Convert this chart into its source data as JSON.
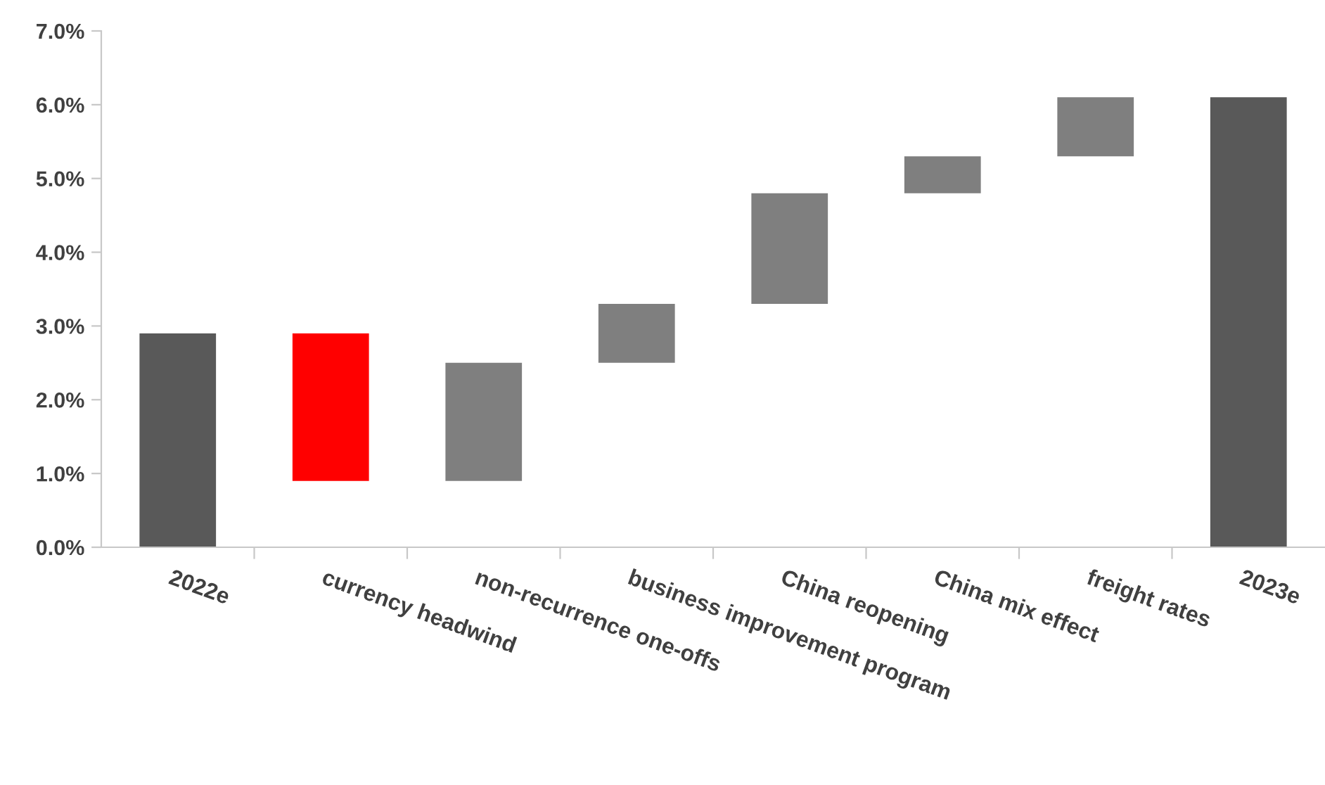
{
  "chart_data": {
    "type": "bar",
    "categories": [
      "2022e",
      "currency headwind",
      "non-recurrence one-offs",
      "business improvement program",
      "China reopening",
      "China mix effect",
      "freight rates",
      "2023e"
    ],
    "values": [
      2.9,
      2.0,
      1.6,
      0.8,
      1.5,
      0.5,
      0.8,
      6.1
    ],
    "base": [
      0,
      0.9,
      0.9,
      2.5,
      3.3,
      4.8,
      5.3,
      0
    ],
    "colors": [
      "#595959",
      "#ff0000",
      "#7f7f7f",
      "#7f7f7f",
      "#7f7f7f",
      "#7f7f7f",
      "#7f7f7f",
      "#595959"
    ],
    "ylim": [
      0,
      7
    ],
    "yticks": [
      {
        "value": 0,
        "label": "0.0%"
      },
      {
        "value": 1,
        "label": "1.0%"
      },
      {
        "value": 2,
        "label": "2.0%"
      },
      {
        "value": 3,
        "label": "3.0%"
      },
      {
        "value": 4,
        "label": "4.0%"
      },
      {
        "value": 5,
        "label": "5.0%"
      },
      {
        "value": 6,
        "label": "6.0%"
      },
      {
        "value": 7,
        "label": "7.0%"
      }
    ],
    "grid": false
  }
}
